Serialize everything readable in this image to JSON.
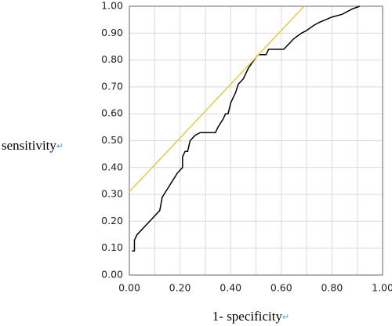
{
  "chart_data": {
    "type": "line",
    "ylabel": "sensitivity",
    "xlabel": "1- specificity",
    "label_mark": "↵",
    "label_mark_color": "#5b9bd5",
    "xlim": [
      0,
      1
    ],
    "ylim": [
      0,
      1
    ],
    "xticks": [
      {
        "value": 0,
        "label": "0.00"
      },
      {
        "value": 0.2,
        "label": "0.20"
      },
      {
        "value": 0.4,
        "label": "0.40"
      },
      {
        "value": 0.6,
        "label": "0.60"
      },
      {
        "value": 0.8,
        "label": "0.80"
      },
      {
        "value": 1,
        "label": "1.00"
      }
    ],
    "x_minor_ticks": [
      0.1,
      0.3,
      0.5,
      0.7,
      0.9
    ],
    "yticks": [
      {
        "value": 0,
        "label": "0.00"
      },
      {
        "value": 0.1,
        "label": "0.10"
      },
      {
        "value": 0.2,
        "label": "0.20"
      },
      {
        "value": 0.3,
        "label": "0.30"
      },
      {
        "value": 0.4,
        "label": "0.40"
      },
      {
        "value": 0.5,
        "label": "0.50"
      },
      {
        "value": 0.6,
        "label": "0.60"
      },
      {
        "value": 0.7,
        "label": "0.70"
      },
      {
        "value": 0.8,
        "label": "0.80"
      },
      {
        "value": 0.9,
        "label": "0.90"
      },
      {
        "value": 1,
        "label": "1.00"
      }
    ],
    "grid": true,
    "series": [
      {
        "color": "#000000",
        "x": [
          0.01,
          0.02,
          0.02,
          0.03,
          0.05,
          0.07,
          0.09,
          0.1,
          0.12,
          0.13,
          0.15,
          0.17,
          0.19,
          0.21,
          0.21,
          0.22,
          0.23,
          0.24,
          0.26,
          0.28,
          0.34,
          0.35,
          0.37,
          0.38,
          0.39,
          0.4,
          0.41,
          0.42,
          0.43,
          0.45,
          0.47,
          0.5,
          0.51,
          0.54,
          0.55,
          0.61,
          0.65,
          0.68,
          0.7,
          0.73,
          0.75,
          0.8,
          0.84,
          0.88,
          0.91
        ],
        "values": [
          0.09,
          0.09,
          0.13,
          0.15,
          0.17,
          0.19,
          0.21,
          0.22,
          0.24,
          0.29,
          0.32,
          0.35,
          0.38,
          0.4,
          0.44,
          0.46,
          0.46,
          0.5,
          0.52,
          0.53,
          0.53,
          0.55,
          0.58,
          0.6,
          0.6,
          0.64,
          0.66,
          0.68,
          0.71,
          0.73,
          0.77,
          0.81,
          0.82,
          0.82,
          0.84,
          0.84,
          0.88,
          0.9,
          0.91,
          0.93,
          0.94,
          0.96,
          0.97,
          0.99,
          1.0
        ]
      },
      {
        "color": "#e6c84a",
        "x": [
          0,
          0.69
        ],
        "values": [
          0.31,
          1.0
        ]
      }
    ]
  }
}
